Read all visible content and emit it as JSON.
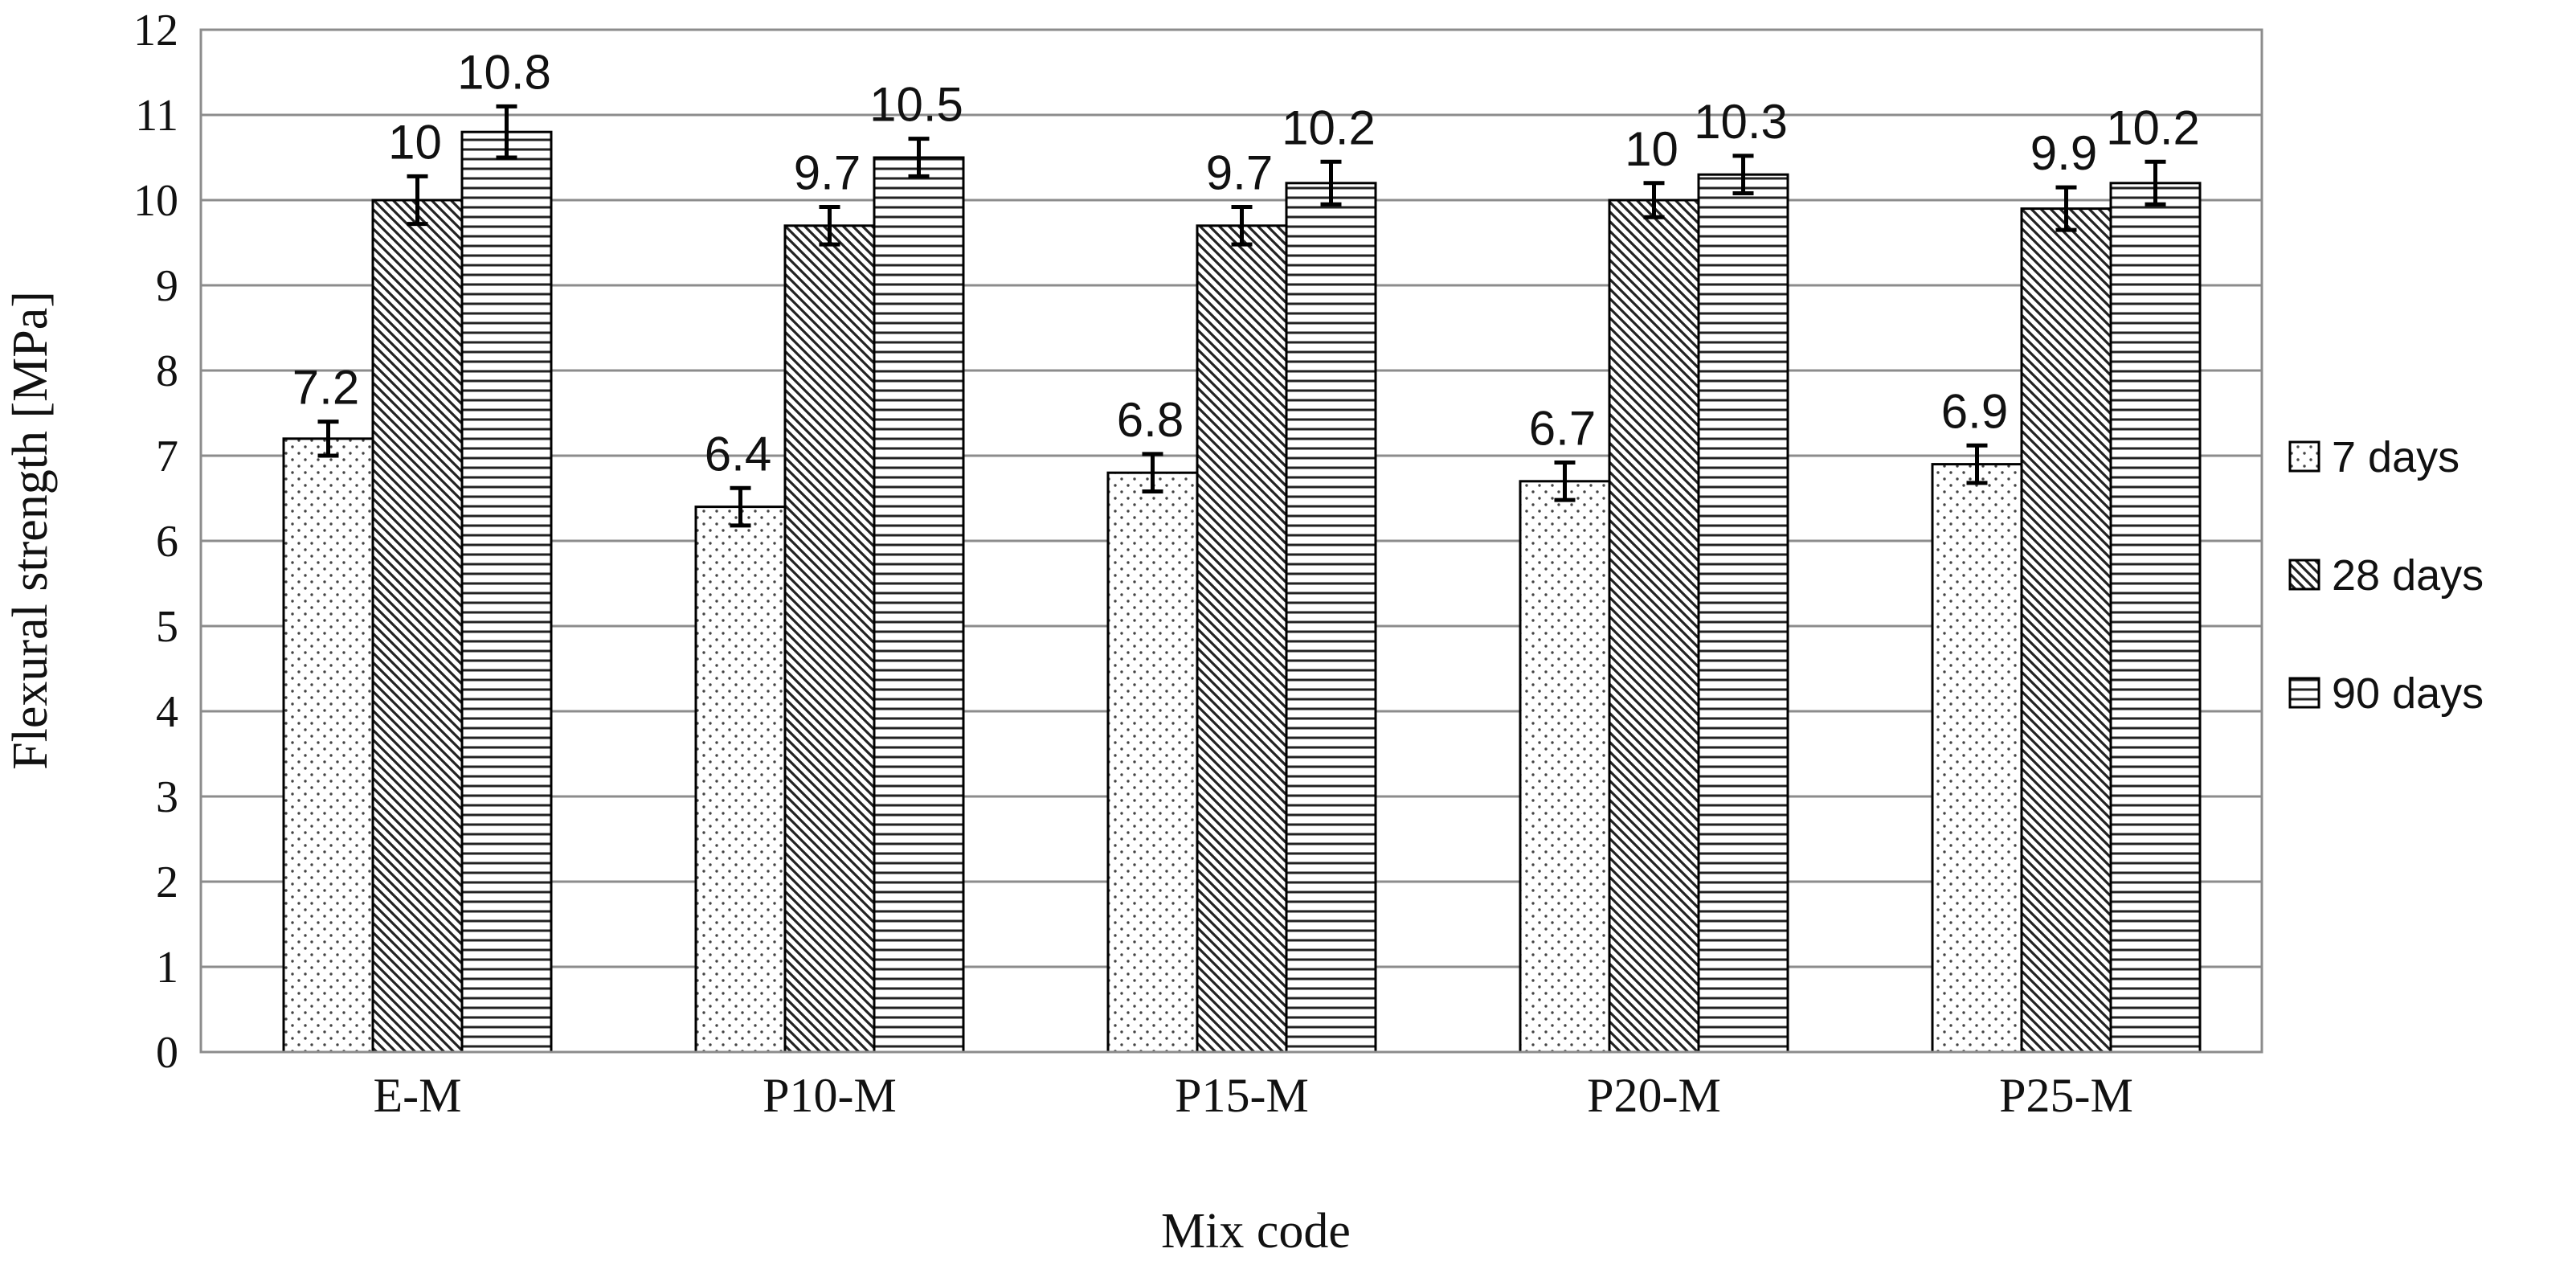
{
  "chart_data": {
    "type": "bar",
    "title": "",
    "xlabel": "Mix code",
    "ylabel": "Flexural strength [MPa]",
    "ylim": [
      0,
      12
    ],
    "yticks": [
      "0",
      "1",
      "2",
      "3",
      "4",
      "5",
      "6",
      "7",
      "8",
      "9",
      "10",
      "11",
      "12"
    ],
    "grid": true,
    "legend": "right",
    "categories": [
      "E-M",
      "P10-M",
      "P15-M",
      "P20-M",
      "P25-M"
    ],
    "series": [
      {
        "name": "7 days",
        "pattern": "dots",
        "values": [
          7.2,
          6.4,
          6.8,
          6.7,
          6.9
        ],
        "labels": [
          "7.2",
          "6.4",
          "6.8",
          "6.7",
          "6.9"
        ],
        "errors": [
          0.2,
          0.22,
          0.22,
          0.22,
          0.22
        ]
      },
      {
        "name": "28 days",
        "pattern": "diagonal",
        "values": [
          10,
          9.7,
          9.7,
          10,
          9.9
        ],
        "labels": [
          "10",
          "9.7",
          "9.7",
          "10",
          "9.9"
        ],
        "errors": [
          0.28,
          0.22,
          0.22,
          0.2,
          0.25
        ]
      },
      {
        "name": "90 days",
        "pattern": "horizontal",
        "values": [
          10.8,
          10.5,
          10.2,
          10.3,
          10.2
        ],
        "labels": [
          "10.8",
          "10.5",
          "10.2",
          "10.3",
          "10.2"
        ],
        "errors": [
          0.3,
          0.22,
          0.25,
          0.22,
          0.25
        ]
      }
    ],
    "colors": {
      "bar_fill": "#ffffff",
      "bar_stroke": "#000000",
      "grid": "#8c8c8c",
      "error_bar": "#000000"
    }
  }
}
